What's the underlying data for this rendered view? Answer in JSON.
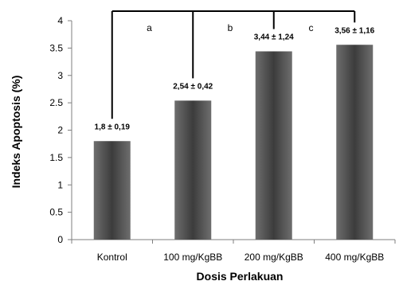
{
  "chart_data": {
    "type": "bar",
    "title": "",
    "xlabel": "Dosis Perlakuan",
    "ylabel": "Indeks Apoptosis (%)",
    "ylim": [
      0,
      4
    ],
    "yticks": [
      "0",
      "0.5",
      "1",
      "1.5",
      "2",
      "2.5",
      "3",
      "3.5",
      "4"
    ],
    "categories": [
      "Kontrol",
      "100 mg/KgBB",
      "200 mg/KgBB",
      "400 mg/KgBB"
    ],
    "values": [
      1.8,
      2.54,
      3.44,
      3.56
    ],
    "value_labels": [
      "1,8 ± 0,19",
      "2,54 ± 0,42",
      "3,44 ± 1,24",
      "3,56 ± 1,16"
    ],
    "grid": false,
    "legend": "none",
    "bar_color": "#4a4a4a",
    "significance": {
      "bracket_y": 4,
      "letters": [
        {
          "text": "a",
          "between": [
            0,
            1
          ]
        },
        {
          "text": "b",
          "between": [
            1,
            2
          ]
        },
        {
          "text": "c",
          "between": [
            2,
            3
          ]
        }
      ]
    }
  }
}
